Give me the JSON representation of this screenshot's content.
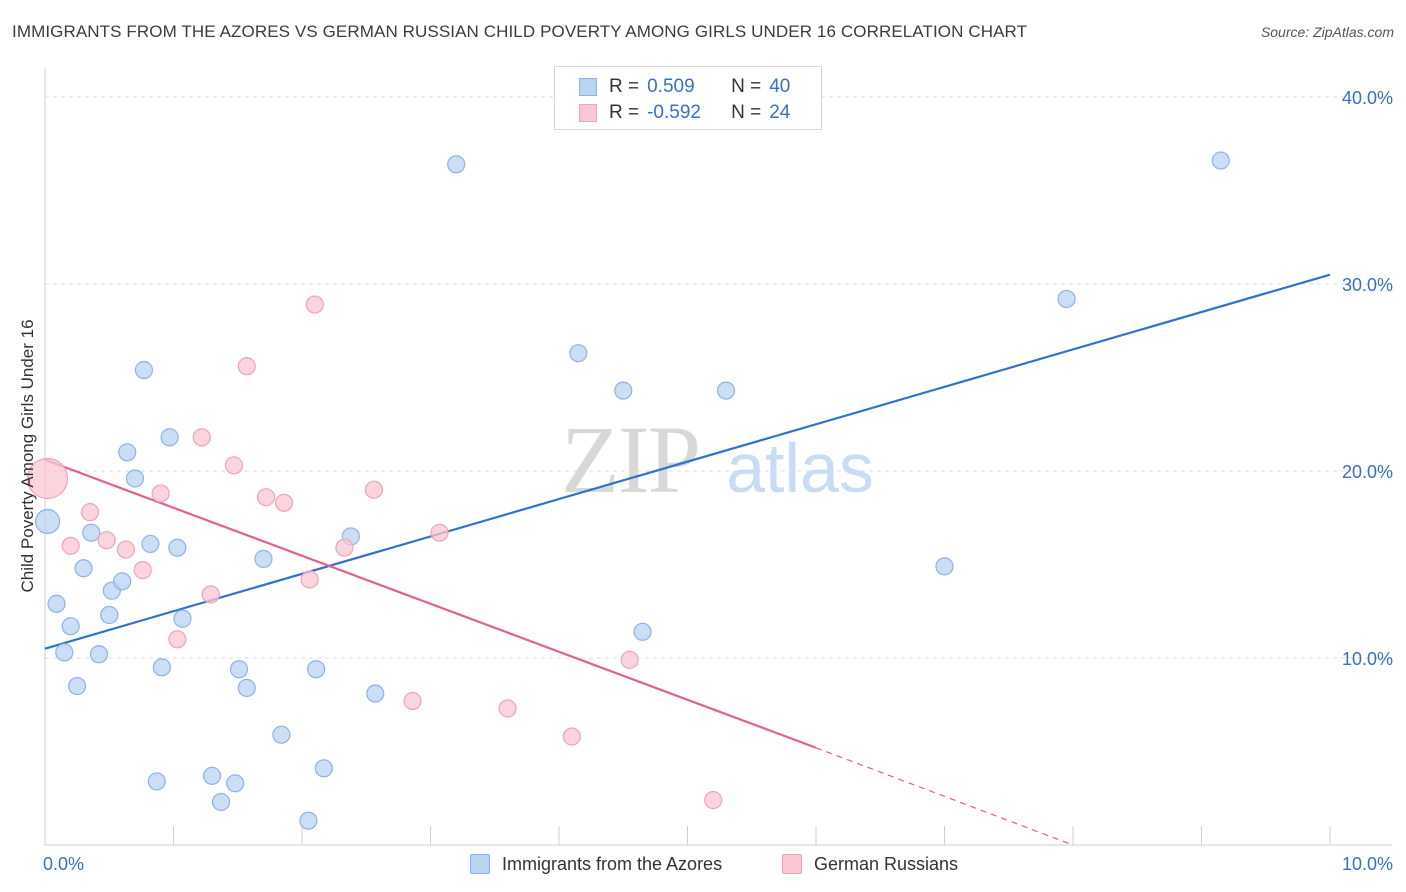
{
  "title": "IMMIGRANTS FROM THE AZORES VS GERMAN RUSSIAN CHILD POVERTY AMONG GIRLS UNDER 16 CORRELATION CHART",
  "source": "Source: ZipAtlas.com",
  "watermark": {
    "zip": "ZIP",
    "atlas": "atlas"
  },
  "legend": {
    "rows": [
      {
        "r_label": "R =",
        "r_value": "0.509",
        "n_label": "N =",
        "n_value": "40"
      },
      {
        "r_label": "R =",
        "r_value": "-0.592",
        "n_label": "N =",
        "n_value": "24"
      }
    ]
  },
  "colors": {
    "blue_fill": "#b9d3f3",
    "blue_stroke": "#8db3e6",
    "blue_line": "#2f73cc",
    "pink_fill": "#f9c6d3",
    "pink_stroke": "#eea5b9",
    "pink_line": "#e0628c",
    "tick_label": "#3a6fc4",
    "grid": "#dcdcdc"
  },
  "chart_data": {
    "type": "scatter",
    "title": "IMMIGRANTS FROM THE AZORES VS GERMAN RUSSIAN CHILD POVERTY AMONG GIRLS UNDER 16 CORRELATION CHART",
    "xlabel": "",
    "ylabel": "Child Poverty Among Girls Under 16",
    "xlim": [
      0,
      10
    ],
    "ylim": [
      0,
      40
    ],
    "x_tick_labels": [
      "0.0%",
      "10.0%"
    ],
    "y_ticks": [
      10,
      20,
      30,
      40
    ],
    "y_tick_labels": [
      "10.0%",
      "20.0%",
      "30.0%",
      "40.0%"
    ],
    "grid": true,
    "legend_position": "bottom",
    "series": [
      {
        "name": "Immigrants from the Azores",
        "color": "#b9d3f3",
        "points": [
          {
            "x": 0.02,
            "y": 17.3
          },
          {
            "x": 0.09,
            "y": 12.9
          },
          {
            "x": 0.15,
            "y": 10.3
          },
          {
            "x": 0.2,
            "y": 11.7
          },
          {
            "x": 0.25,
            "y": 8.5
          },
          {
            "x": 0.3,
            "y": 14.8
          },
          {
            "x": 0.36,
            "y": 16.7
          },
          {
            "x": 0.42,
            "y": 10.2
          },
          {
            "x": 0.5,
            "y": 12.3
          },
          {
            "x": 0.52,
            "y": 13.6
          },
          {
            "x": 0.6,
            "y": 14.1
          },
          {
            "x": 0.64,
            "y": 21.0
          },
          {
            "x": 0.7,
            "y": 19.6
          },
          {
            "x": 0.77,
            "y": 25.4
          },
          {
            "x": 0.82,
            "y": 16.1
          },
          {
            "x": 0.87,
            "y": 3.4
          },
          {
            "x": 0.91,
            "y": 9.5
          },
          {
            "x": 0.97,
            "y": 21.8
          },
          {
            "x": 1.03,
            "y": 15.9
          },
          {
            "x": 1.07,
            "y": 12.1
          },
          {
            "x": 1.3,
            "y": 3.7
          },
          {
            "x": 1.37,
            "y": 2.3
          },
          {
            "x": 1.48,
            "y": 3.3
          },
          {
            "x": 1.51,
            "y": 9.4
          },
          {
            "x": 1.57,
            "y": 8.4
          },
          {
            "x": 1.7,
            "y": 15.3
          },
          {
            "x": 1.84,
            "y": 5.9
          },
          {
            "x": 2.05,
            "y": 1.3
          },
          {
            "x": 2.11,
            "y": 9.4
          },
          {
            "x": 2.17,
            "y": 4.1
          },
          {
            "x": 2.38,
            "y": 16.5
          },
          {
            "x": 2.57,
            "y": 8.1
          },
          {
            "x": 3.2,
            "y": 36.4
          },
          {
            "x": 4.15,
            "y": 26.3
          },
          {
            "x": 4.5,
            "y": 24.3
          },
          {
            "x": 4.65,
            "y": 11.4
          },
          {
            "x": 5.3,
            "y": 24.3
          },
          {
            "x": 7.0,
            "y": 14.9
          },
          {
            "x": 7.95,
            "y": 29.2
          },
          {
            "x": 9.15,
            "y": 36.6
          }
        ]
      },
      {
        "name": "German Russians",
        "color": "#f9c6d3",
        "points": [
          {
            "x": 0.02,
            "y": 19.6
          },
          {
            "x": 0.2,
            "y": 16.0
          },
          {
            "x": 0.35,
            "y": 17.8
          },
          {
            "x": 0.48,
            "y": 16.3
          },
          {
            "x": 0.63,
            "y": 15.8
          },
          {
            "x": 0.76,
            "y": 14.7
          },
          {
            "x": 0.9,
            "y": 18.8
          },
          {
            "x": 1.03,
            "y": 11.0
          },
          {
            "x": 1.22,
            "y": 21.8
          },
          {
            "x": 1.29,
            "y": 13.4
          },
          {
            "x": 1.47,
            "y": 20.3
          },
          {
            "x": 1.57,
            "y": 25.6
          },
          {
            "x": 1.72,
            "y": 18.6
          },
          {
            "x": 1.86,
            "y": 18.3
          },
          {
            "x": 2.06,
            "y": 14.2
          },
          {
            "x": 2.1,
            "y": 28.9
          },
          {
            "x": 2.33,
            "y": 15.9
          },
          {
            "x": 2.56,
            "y": 19.0
          },
          {
            "x": 2.86,
            "y": 7.7
          },
          {
            "x": 3.07,
            "y": 16.7
          },
          {
            "x": 3.6,
            "y": 7.3
          },
          {
            "x": 4.1,
            "y": 5.8
          },
          {
            "x": 4.55,
            "y": 9.9
          },
          {
            "x": 5.2,
            "y": 2.4
          }
        ]
      }
    ],
    "trend_lines": [
      {
        "series": "Immigrants from the Azores",
        "x0": 0,
        "y0": 10.5,
        "x1": 10,
        "y1": 30.5
      },
      {
        "series": "German Russians",
        "x0": 0,
        "y0": 20.6,
        "x1": 6.0,
        "y1": 5.2,
        "dashed_to_x": 8.0,
        "dashed_to_y": 0.0
      }
    ]
  }
}
